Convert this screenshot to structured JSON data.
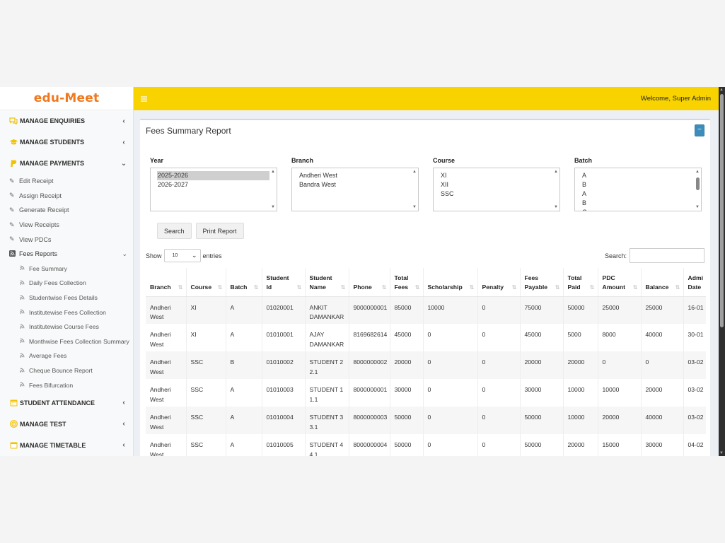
{
  "app": {
    "logo": "edu-Meet",
    "welcome": "Welcome, Super Admin"
  },
  "sidebar": {
    "menu": [
      {
        "label": "MANAGE ENQUIRIES",
        "icon": "comments-icon",
        "expanded": false
      },
      {
        "label": "MANAGE STUDENTS",
        "icon": "graduation-cap-icon",
        "expanded": false
      },
      {
        "label": "MANAGE PAYMENTS",
        "icon": "paypal-icon",
        "expanded": true
      }
    ],
    "payments_items": [
      {
        "label": "Edit Receipt"
      },
      {
        "label": "Assign Receipt"
      },
      {
        "label": "Generate Receipt"
      },
      {
        "label": "View Receipts"
      },
      {
        "label": "View PDCs"
      }
    ],
    "fees_reports": {
      "label": "Fees Reports",
      "items": [
        "Fee Summary",
        "Daily Fees Collection",
        "Studentwise Fees Details",
        "Institutewise Fees Collection",
        "Institutewise Course Fees",
        "Monthwise Fees Collection Summary",
        "Average Fees",
        "Cheque Bounce Report",
        "Fees Bifurcation"
      ]
    },
    "lower_menu": [
      {
        "label": "STUDENT ATTENDANCE",
        "icon": "calendar-icon"
      },
      {
        "label": "MANAGE TEST",
        "icon": "target-icon"
      },
      {
        "label": "MANAGE TIMETABLE",
        "icon": "calendar-icon"
      }
    ]
  },
  "report": {
    "title": "Fees Summary Report",
    "collapse_label": "−",
    "filters": {
      "year": {
        "label": "Year",
        "options": [
          "2025-2026",
          "2026-2027"
        ],
        "selected": "2025-2026"
      },
      "branch": {
        "label": "Branch",
        "options": [
          "Andheri West",
          "Bandra West"
        ]
      },
      "course": {
        "label": "Course",
        "options": [
          "XI",
          "XII",
          "SSC"
        ]
      },
      "batch": {
        "label": "Batch",
        "options": [
          "A",
          "B",
          "A",
          "B",
          "C"
        ]
      }
    },
    "buttons": {
      "search": "Search",
      "print": "Print Report"
    },
    "show_label": "Show",
    "entries_value": "10",
    "entries_label": "entries",
    "search_label": "Search:",
    "columns": [
      "Branch",
      "Course",
      "Batch",
      "Student Id",
      "Student Name",
      "Phone",
      "Total Fees",
      "Scholarship",
      "Penalty",
      "Fees Payable",
      "Total Paid",
      "PDC Amount",
      "Balance",
      "Admission Date"
    ],
    "column_lines": [
      [
        "Branch"
      ],
      [
        "Course"
      ],
      [
        "Batch"
      ],
      [
        "Student",
        "Id"
      ],
      [
        "Student",
        "Name"
      ],
      [
        "Phone"
      ],
      [
        "Total",
        "Fees"
      ],
      [
        "Scholarship"
      ],
      [
        "Penalty"
      ],
      [
        "Fees",
        "Payable"
      ],
      [
        "Total",
        "Paid"
      ],
      [
        "PDC",
        "Amount"
      ],
      [
        "Balance"
      ],
      [
        "Admi",
        "Date"
      ]
    ],
    "rows": [
      [
        [
          "Andheri",
          "West"
        ],
        [
          "XI"
        ],
        [
          "A"
        ],
        [
          "01020001"
        ],
        [
          "ANKIT",
          "DAMANKAR"
        ],
        [
          "9000000001"
        ],
        [
          "85000"
        ],
        [
          "10000"
        ],
        [
          "0"
        ],
        [
          "75000"
        ],
        [
          "50000"
        ],
        [
          "25000"
        ],
        [
          "25000"
        ],
        [
          "16-01"
        ]
      ],
      [
        [
          "Andheri",
          "West"
        ],
        [
          "XI"
        ],
        [
          "A"
        ],
        [
          "01010001"
        ],
        [
          "AJAY",
          "DAMANKAR"
        ],
        [
          "8169682614"
        ],
        [
          "45000"
        ],
        [
          "0"
        ],
        [
          "0"
        ],
        [
          "45000"
        ],
        [
          "5000"
        ],
        [
          "8000"
        ],
        [
          "40000"
        ],
        [
          "30-01"
        ]
      ],
      [
        [
          "Andheri",
          "West"
        ],
        [
          "SSC"
        ],
        [
          "B"
        ],
        [
          "01010002"
        ],
        [
          "STUDENT 2",
          "2.1"
        ],
        [
          "8000000002"
        ],
        [
          "20000"
        ],
        [
          "0"
        ],
        [
          "0"
        ],
        [
          "20000"
        ],
        [
          "20000"
        ],
        [
          "0"
        ],
        [
          "0"
        ],
        [
          "03-02"
        ]
      ],
      [
        [
          "Andheri",
          "West"
        ],
        [
          "SSC"
        ],
        [
          "A"
        ],
        [
          "01010003"
        ],
        [
          "STUDENT 1",
          "1.1"
        ],
        [
          "8000000001"
        ],
        [
          "30000"
        ],
        [
          "0"
        ],
        [
          "0"
        ],
        [
          "30000"
        ],
        [
          "10000"
        ],
        [
          "10000"
        ],
        [
          "20000"
        ],
        [
          "03-02"
        ]
      ],
      [
        [
          "Andheri",
          "West"
        ],
        [
          "SSC"
        ],
        [
          "A"
        ],
        [
          "01010004"
        ],
        [
          "STUDENT 3",
          "3.1"
        ],
        [
          "8000000003"
        ],
        [
          "50000"
        ],
        [
          "0"
        ],
        [
          "0"
        ],
        [
          "50000"
        ],
        [
          "10000"
        ],
        [
          "20000"
        ],
        [
          "40000"
        ],
        [
          "03-02"
        ]
      ],
      [
        [
          "Andheri",
          "West"
        ],
        [
          "SSC"
        ],
        [
          "A"
        ],
        [
          "01010005"
        ],
        [
          "STUDENT 4",
          "4.1"
        ],
        [
          "8000000004"
        ],
        [
          "50000"
        ],
        [
          "0"
        ],
        [
          "0"
        ],
        [
          "50000"
        ],
        [
          "20000"
        ],
        [
          "15000"
        ],
        [
          "30000"
        ],
        [
          "04-02"
        ]
      ]
    ]
  }
}
